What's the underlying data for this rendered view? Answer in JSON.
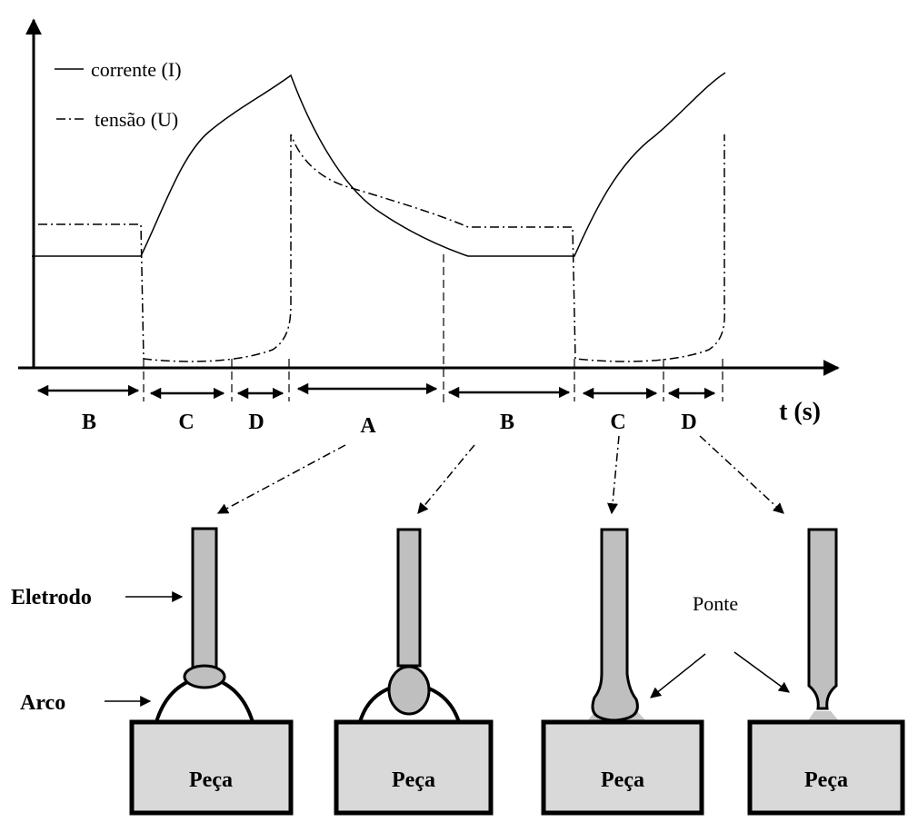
{
  "legend": {
    "items": [
      "corrente (I)",
      "tensão (U)"
    ]
  },
  "axis": {
    "x_label": "t (s)"
  },
  "phases": [
    "B",
    "C",
    "D",
    "A",
    "B",
    "C",
    "D"
  ],
  "labels": {
    "electrode": "Eletrodo",
    "arc": "Arco",
    "bridge": "Ponte"
  },
  "workpieces": [
    "Peça",
    "Peça",
    "Peça",
    "Peça"
  ]
}
